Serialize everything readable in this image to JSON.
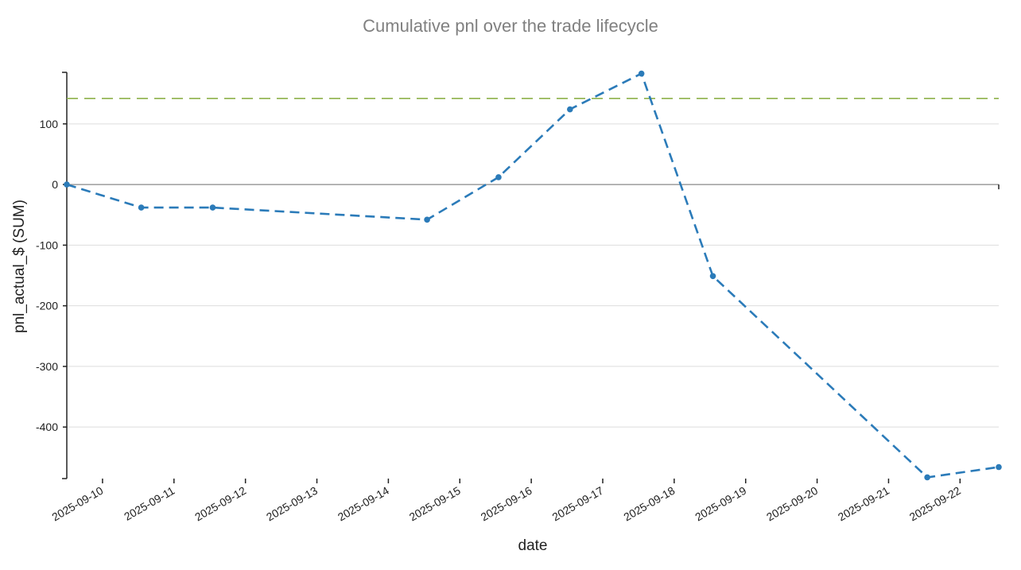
{
  "chart_data": {
    "type": "line",
    "title": "Cumulative pnl over the trade lifecycle",
    "xlabel": "date",
    "ylabel": "pnl_actual_$ (SUM)",
    "x_tick_labels": [
      "2025-09-10",
      "2025-09-11",
      "2025-09-12",
      "2025-09-13",
      "2025-09-14",
      "2025-09-15",
      "2025-09-16",
      "2025-09-17",
      "2025-09-18",
      "2025-09-19",
      "2025-09-20",
      "2025-09-21",
      "2025-09-22"
    ],
    "x_range": [
      "2025-09-09T12:00",
      "2025-09-22T13:00"
    ],
    "ylim": [
      -485,
      185
    ],
    "y_ticks": [
      100,
      0,
      -100,
      -200,
      -300,
      -400
    ],
    "grid": "horizontal",
    "series": [
      {
        "color": "#2b7bb9",
        "points": [
          {
            "x": "2025-09-09T12:00",
            "y": 0
          },
          {
            "x": "2025-09-10T13:00",
            "y": -38
          },
          {
            "x": "2025-09-11T13:00",
            "y": -38
          },
          {
            "x": "2025-09-14T13:00",
            "y": -58
          },
          {
            "x": "2025-09-15T13:00",
            "y": 12
          },
          {
            "x": "2025-09-16T13:00",
            "y": 124
          },
          {
            "x": "2025-09-17T13:00",
            "y": 183
          },
          {
            "x": "2025-09-18T13:00",
            "y": -151
          },
          {
            "x": "2025-09-21T13:00",
            "y": -483
          },
          {
            "x": "2025-09-22T13:00",
            "y": -466
          }
        ]
      }
    ],
    "reference_lines": [
      {
        "y": 142,
        "color": "#8db14a"
      }
    ]
  }
}
